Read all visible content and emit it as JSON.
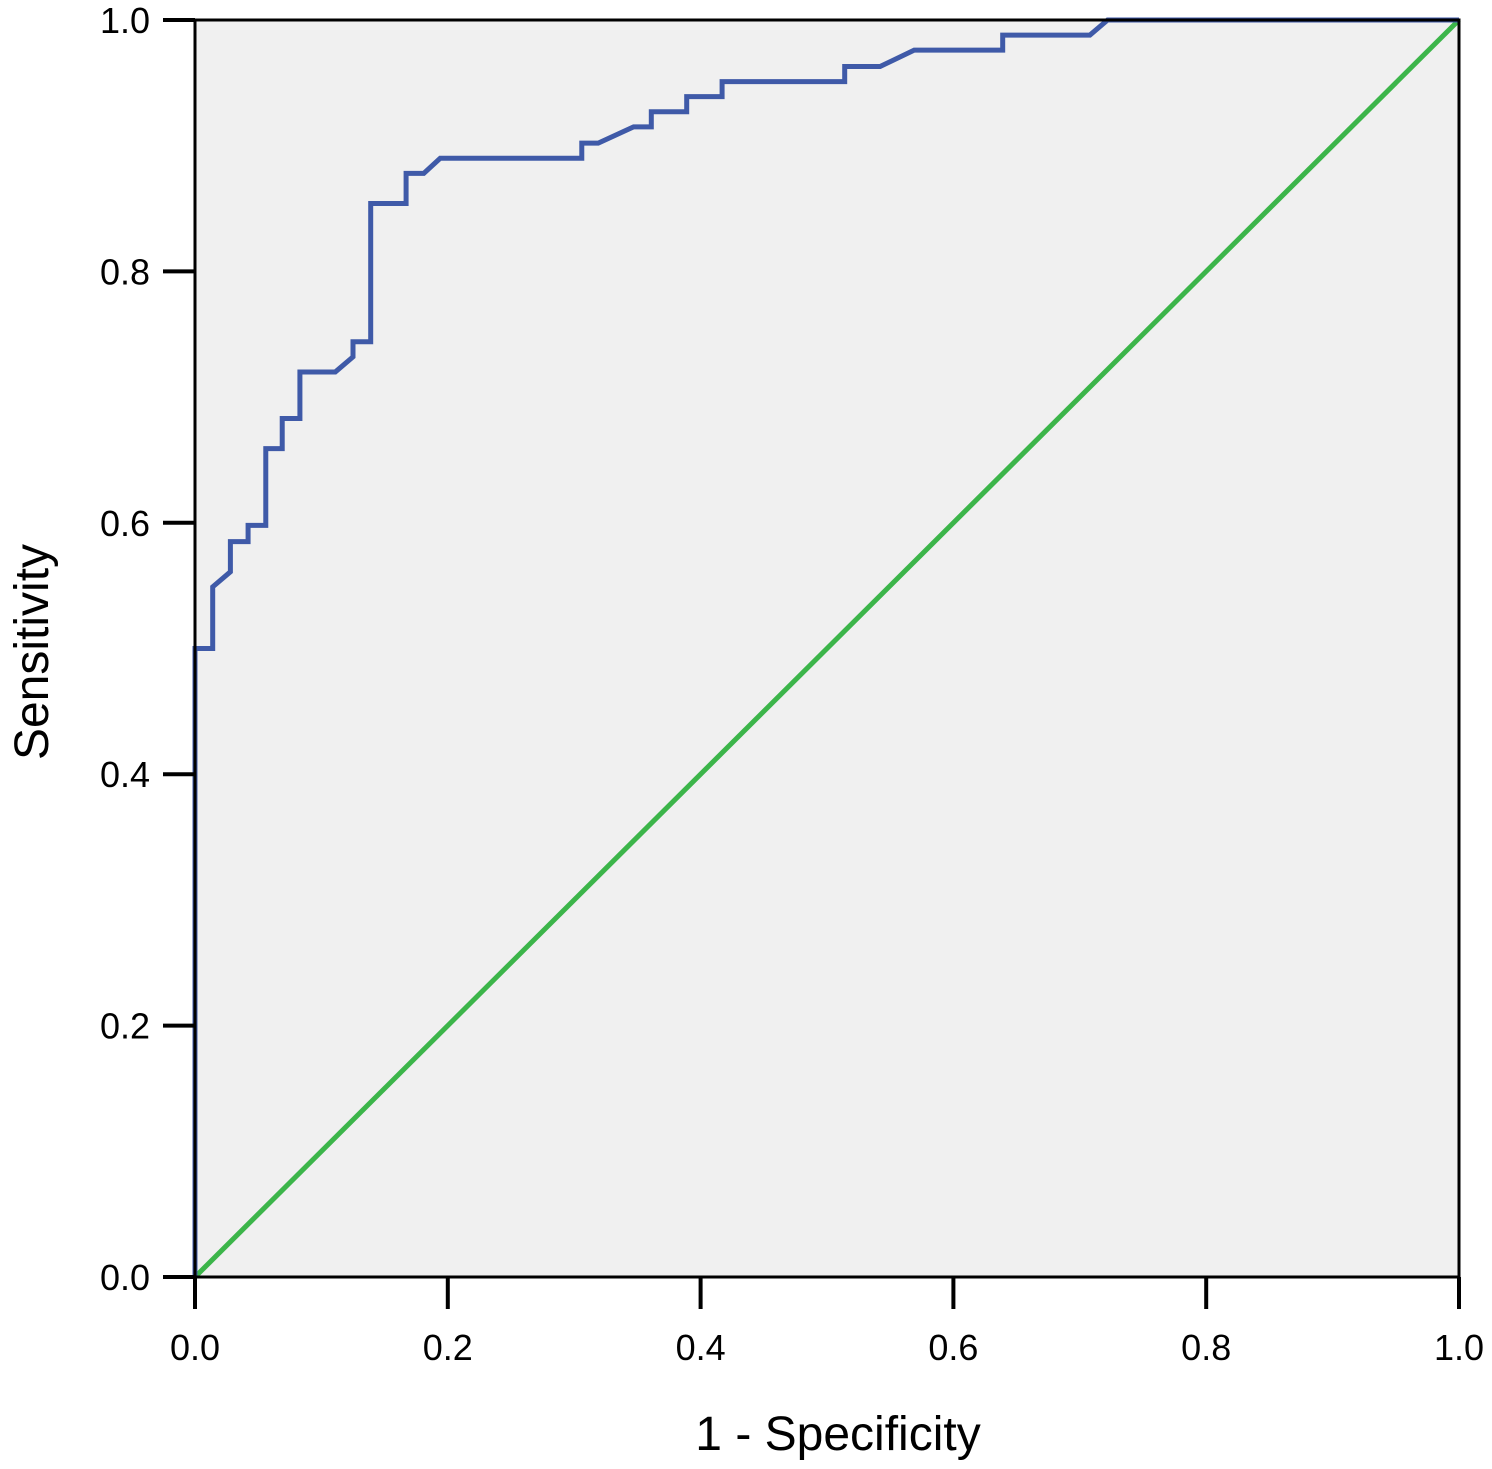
{
  "chart_data": {
    "type": "line",
    "title": "",
    "xlabel": "1 - Specificity",
    "ylabel": "Sensitivity",
    "xlim": [
      0,
      1
    ],
    "ylim": [
      0,
      1
    ],
    "x_ticks": [
      "0.0",
      "0.2",
      "0.4",
      "0.6",
      "0.8",
      "1.0"
    ],
    "y_ticks": [
      "0.0",
      "0.2",
      "0.4",
      "0.6",
      "0.8",
      "1.0"
    ],
    "grid": false,
    "legend": "none",
    "plot_background": "#f0f0f0",
    "series": [
      {
        "kind": "roc-curve",
        "color": "#3f5aa8",
        "points": [
          [
            0,
            0
          ],
          [
            0,
            0.5
          ],
          [
            0.014,
            0.5
          ],
          [
            0.014,
            0.549
          ],
          [
            0.028,
            0.561
          ],
          [
            0.028,
            0.585
          ],
          [
            0.042,
            0.585
          ],
          [
            0.042,
            0.598
          ],
          [
            0.056,
            0.598
          ],
          [
            0.056,
            0.659
          ],
          [
            0.069,
            0.659
          ],
          [
            0.069,
            0.683
          ],
          [
            0.083,
            0.683
          ],
          [
            0.083,
            0.72
          ],
          [
            0.111,
            0.72
          ],
          [
            0.125,
            0.732
          ],
          [
            0.125,
            0.744
          ],
          [
            0.139,
            0.744
          ],
          [
            0.139,
            0.854
          ],
          [
            0.167,
            0.854
          ],
          [
            0.167,
            0.878
          ],
          [
            0.181,
            0.878
          ],
          [
            0.194,
            0.89
          ],
          [
            0.306,
            0.89
          ],
          [
            0.306,
            0.902
          ],
          [
            0.319,
            0.902
          ],
          [
            0.347,
            0.915
          ],
          [
            0.361,
            0.915
          ],
          [
            0.361,
            0.927
          ],
          [
            0.389,
            0.927
          ],
          [
            0.389,
            0.939
          ],
          [
            0.417,
            0.939
          ],
          [
            0.417,
            0.951
          ],
          [
            0.514,
            0.951
          ],
          [
            0.514,
            0.963
          ],
          [
            0.542,
            0.963
          ],
          [
            0.569,
            0.976
          ],
          [
            0.639,
            0.976
          ],
          [
            0.639,
            0.988
          ],
          [
            0.708,
            0.988
          ],
          [
            0.722,
            1
          ],
          [
            1,
            1
          ]
        ]
      },
      {
        "kind": "reference-line",
        "color": "#3cb54a",
        "points": [
          [
            0,
            0
          ],
          [
            1,
            1
          ]
        ]
      }
    ]
  }
}
